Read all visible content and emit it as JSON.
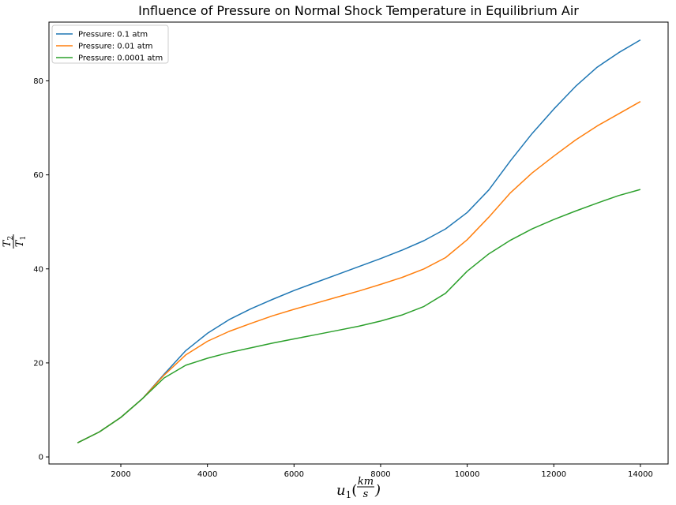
{
  "chart_data": {
    "type": "line",
    "title": "Influence of Pressure on Normal Shock Temperature in Equilibrium Air",
    "xlabel": "u1(km/s)",
    "ylabel": "T2/T1",
    "xlim": [
      340,
      14640
    ],
    "ylim": [
      -1.5,
      92.5
    ],
    "xticks": [
      2000,
      4000,
      6000,
      8000,
      10000,
      12000,
      14000
    ],
    "yticks": [
      0,
      20,
      40,
      60,
      80
    ],
    "grid": false,
    "legend_position": "top-left",
    "colors": {
      "s0": "#1f77b4",
      "s1": "#ff7f0e",
      "s2": "#2ca02c"
    },
    "series": [
      {
        "name": "Pressure: 0.1 atm",
        "x": [
          1000,
          1500,
          2000,
          2500,
          3000,
          3500,
          4000,
          4500,
          5000,
          5500,
          6000,
          6500,
          7000,
          7500,
          8000,
          8500,
          9000,
          9500,
          10000,
          10500,
          11000,
          11500,
          12000,
          12500,
          13000,
          13500,
          14000
        ],
        "y": [
          3.0,
          5.3,
          8.4,
          12.4,
          17.6,
          22.6,
          26.3,
          29.2,
          31.5,
          33.5,
          35.4,
          37.1,
          38.8,
          40.5,
          42.2,
          44.0,
          46.0,
          48.5,
          52.0,
          56.8,
          63.0,
          68.8,
          74.0,
          78.8,
          82.9,
          86.0,
          88.7
        ]
      },
      {
        "name": "Pressure: 0.01 atm",
        "x": [
          1000,
          1500,
          2000,
          2500,
          3000,
          3500,
          4000,
          4500,
          5000,
          5500,
          6000,
          6500,
          7000,
          7500,
          8000,
          8500,
          9000,
          9500,
          10000,
          10500,
          11000,
          11500,
          12000,
          12500,
          13000,
          13500,
          14000
        ],
        "y": [
          3.0,
          5.3,
          8.4,
          12.4,
          17.4,
          21.7,
          24.6,
          26.7,
          28.4,
          30.0,
          31.4,
          32.7,
          34.0,
          35.3,
          36.7,
          38.2,
          40.0,
          42.4,
          46.2,
          51.0,
          56.2,
          60.4,
          64.0,
          67.4,
          70.4,
          73.0,
          75.6
        ]
      },
      {
        "name": "Pressure: 0.0001 atm",
        "x": [
          1000,
          1500,
          2000,
          2500,
          3000,
          3500,
          4000,
          4500,
          5000,
          5500,
          6000,
          6500,
          7000,
          7500,
          8000,
          8500,
          9000,
          9500,
          10000,
          10500,
          11000,
          11500,
          12000,
          12500,
          13000,
          13500,
          14000
        ],
        "y": [
          3.0,
          5.3,
          8.4,
          12.4,
          16.8,
          19.5,
          21.0,
          22.2,
          23.2,
          24.2,
          25.1,
          26.0,
          26.9,
          27.8,
          28.9,
          30.2,
          32.0,
          34.8,
          39.5,
          43.2,
          46.1,
          48.5,
          50.5,
          52.3,
          54.0,
          55.6,
          56.9
        ]
      }
    ]
  }
}
